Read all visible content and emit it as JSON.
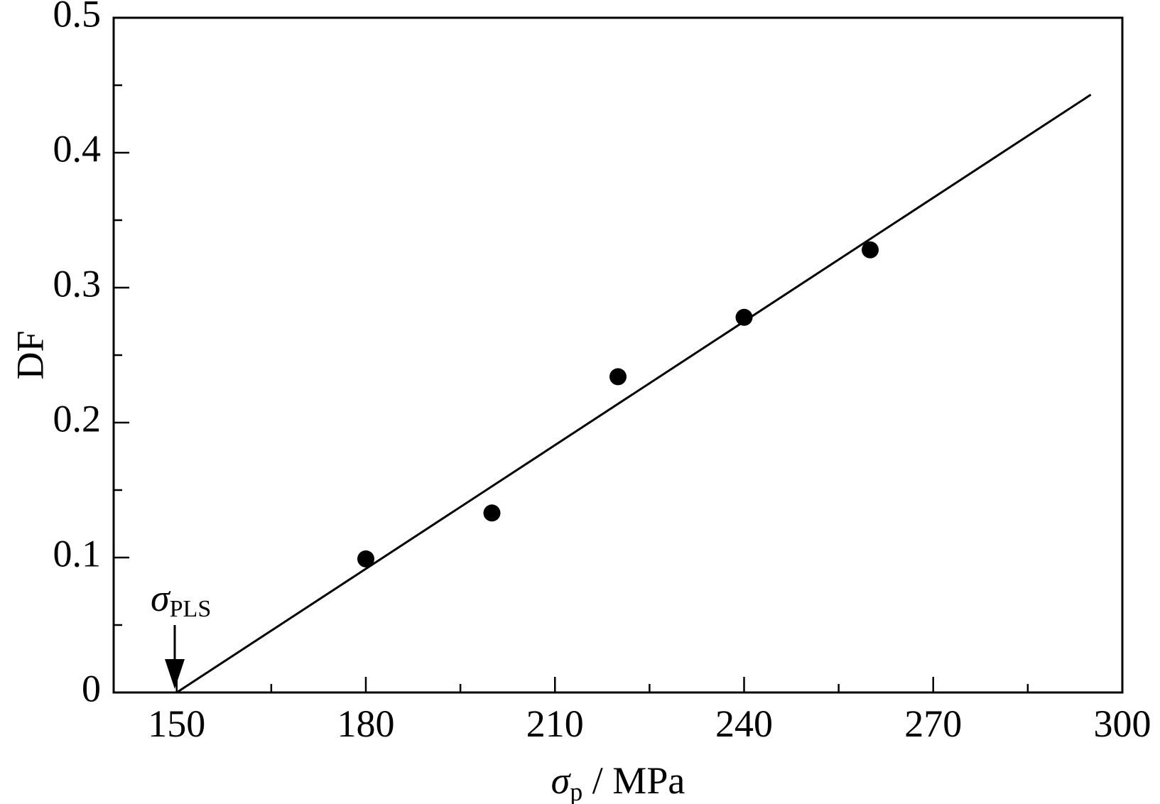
{
  "chart_data": {
    "type": "scatter",
    "title": "",
    "xlabel": {
      "symbol": "σ",
      "subscript": "p",
      "unit": " / MPa"
    },
    "ylabel": "DF",
    "xlim": [
      140,
      300
    ],
    "ylim": [
      0,
      0.5
    ],
    "x_ticks": [
      150,
      180,
      210,
      240,
      270,
      300
    ],
    "x_tick_labels": [
      "150",
      "180",
      "210",
      "240",
      "270",
      "300"
    ],
    "x_minor_ticks": [
      165,
      195,
      225,
      255,
      285
    ],
    "y_ticks": [
      0,
      0.1,
      0.2,
      0.3,
      0.4,
      0.5
    ],
    "y_tick_labels": [
      "0",
      "0.1",
      "0.2",
      "0.3",
      "0.4",
      "0.5"
    ],
    "y_minor_ticks": [
      0.05,
      0.15,
      0.25,
      0.35,
      0.45
    ],
    "grid": false,
    "series": [
      {
        "marker": "filled-circle",
        "color": "#000000",
        "points": [
          {
            "x": 180,
            "y": 0.099
          },
          {
            "x": 200,
            "y": 0.133
          },
          {
            "x": 220,
            "y": 0.234
          },
          {
            "x": 240,
            "y": 0.278
          },
          {
            "x": 260,
            "y": 0.328
          }
        ]
      }
    ],
    "fit_line": {
      "x": [
        150,
        295
      ],
      "y": [
        0,
        0.443
      ],
      "color": "#000000"
    },
    "annotations": [
      {
        "type": "arrow-down",
        "x": 150,
        "y": 0,
        "symbol": "σ",
        "subscript": "PLS"
      }
    ]
  }
}
